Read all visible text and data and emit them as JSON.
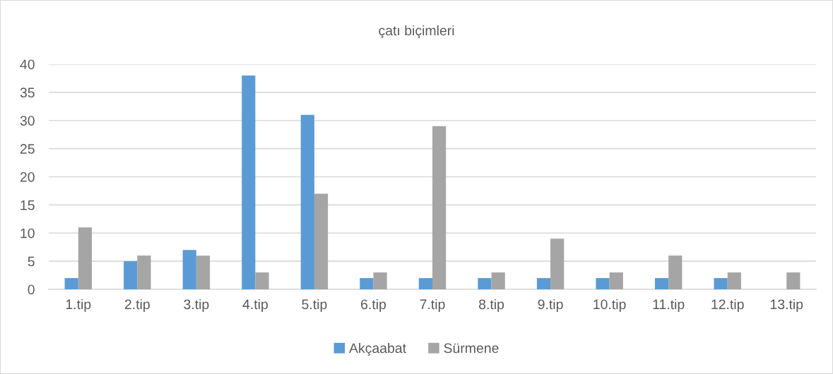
{
  "chart_data": {
    "type": "bar",
    "title": "çatı biçimleri",
    "categories": [
      "1.tip",
      "2.tip",
      "3.tip",
      "4.tip",
      "5.tip",
      "6.tip",
      "7.tip",
      "8.tip",
      "9.tip",
      "10.tip",
      "11.tip",
      "12.tip",
      "13.tip"
    ],
    "series": [
      {
        "name": "Akçaabat",
        "color": "#5b9bd5",
        "values": [
          2,
          5,
          7,
          38,
          31,
          2,
          2,
          2,
          2,
          2,
          2,
          2,
          null
        ]
      },
      {
        "name": "Sürmene",
        "color": "#a5a5a5",
        "values": [
          11,
          6,
          6,
          3,
          17,
          3,
          29,
          3,
          9,
          3,
          6,
          3,
          3
        ]
      }
    ],
    "ylim": [
      0,
      40
    ],
    "yticks": [
      0,
      5,
      10,
      15,
      20,
      25,
      30,
      35,
      40
    ],
    "grid": "y",
    "legend": "bottom"
  }
}
